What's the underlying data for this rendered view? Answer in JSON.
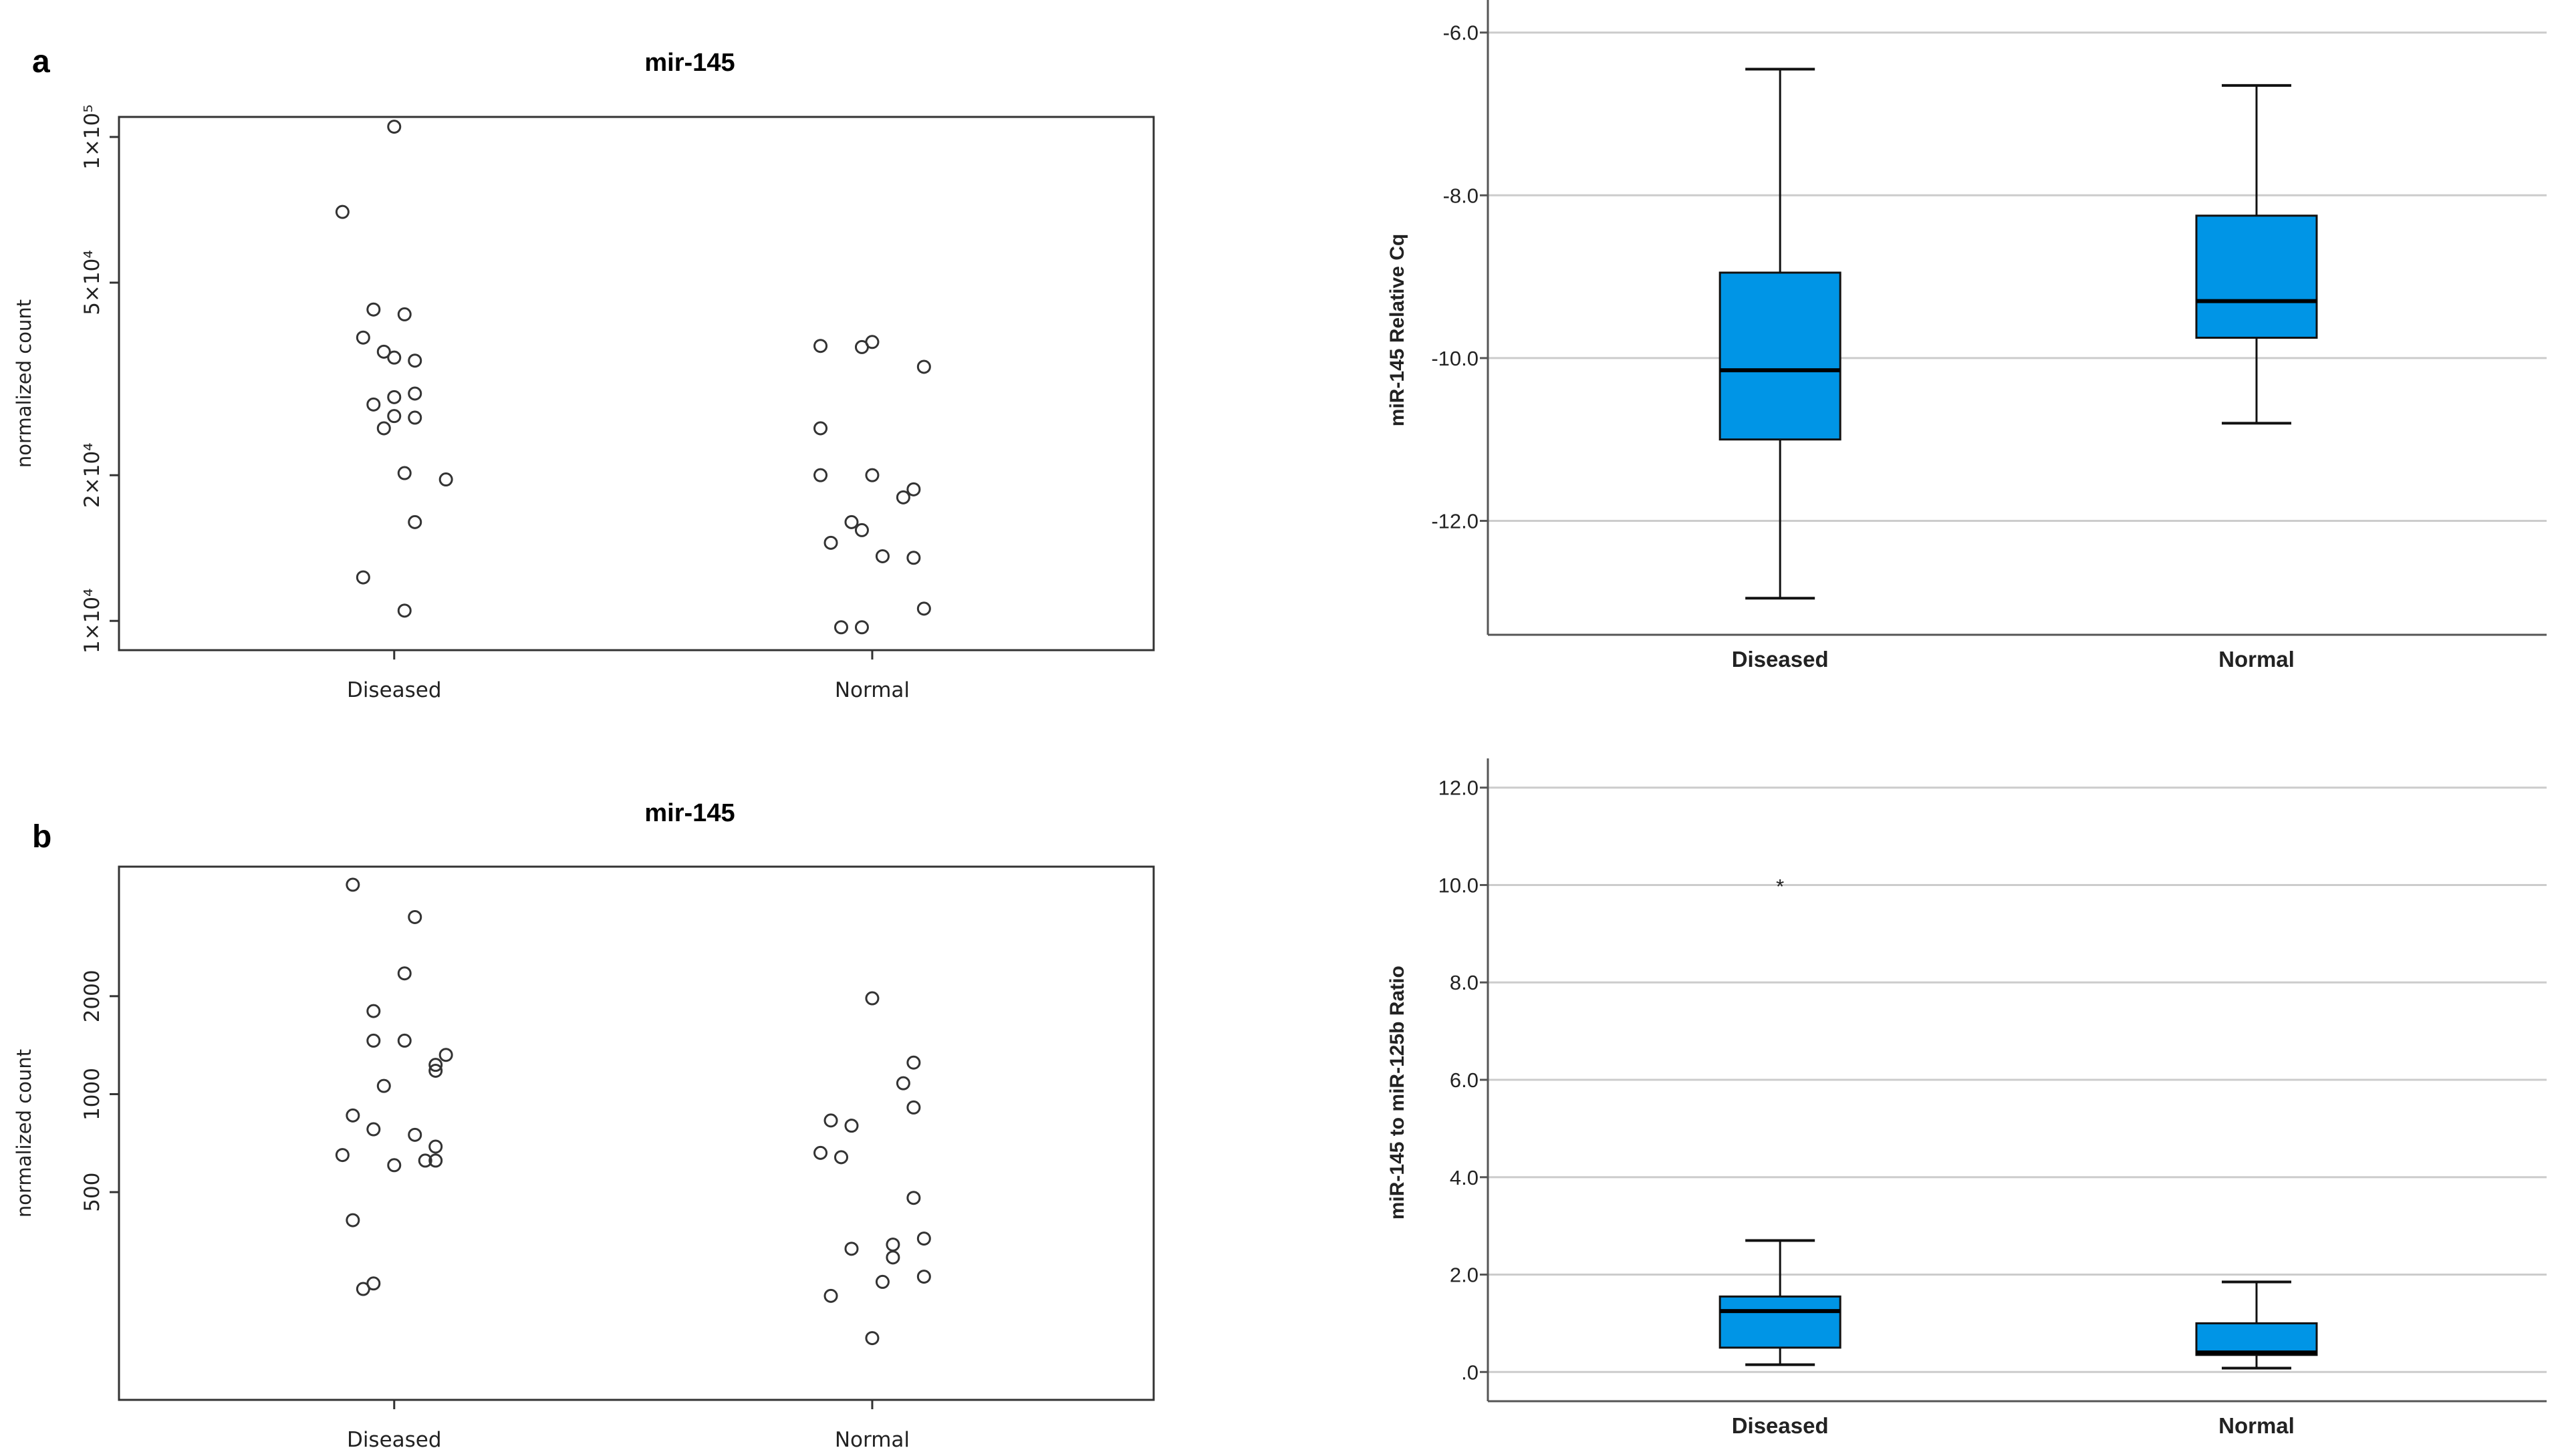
{
  "panels": [
    {
      "id": "a",
      "label": "a"
    },
    {
      "id": "b",
      "label": "b"
    }
  ],
  "chart_data": [
    {
      "id": "a-left",
      "type": "scatter",
      "title": "mir-145",
      "xlabel": "",
      "ylabel": "normalized count",
      "yscale": "log",
      "ylim": [
        8700,
        110000
      ],
      "categories": [
        "Diseased",
        "Normal"
      ],
      "yticks": [
        {
          "value": 10000,
          "label": "1×10⁴"
        },
        {
          "value": 20000,
          "label": "2×10⁴"
        },
        {
          "value": 50000,
          "label": "5×10⁴"
        },
        {
          "value": 100000,
          "label": "1×10⁵"
        }
      ],
      "series": [
        {
          "name": "Diseased",
          "points": [
            {
              "dx": 0.0,
              "y": 105000
            },
            {
              "dx": -0.05,
              "y": 70000
            },
            {
              "dx": -0.02,
              "y": 44000
            },
            {
              "dx": 0.01,
              "y": 43000
            },
            {
              "dx": -0.03,
              "y": 38500
            },
            {
              "dx": -0.01,
              "y": 36000
            },
            {
              "dx": 0.0,
              "y": 35000
            },
            {
              "dx": 0.02,
              "y": 34500
            },
            {
              "dx": 0.02,
              "y": 29500
            },
            {
              "dx": 0.0,
              "y": 29000
            },
            {
              "dx": -0.02,
              "y": 28000
            },
            {
              "dx": 0.0,
              "y": 26500
            },
            {
              "dx": 0.02,
              "y": 26300
            },
            {
              "dx": -0.01,
              "y": 25000
            },
            {
              "dx": 0.01,
              "y": 20200
            },
            {
              "dx": 0.05,
              "y": 19600
            },
            {
              "dx": 0.02,
              "y": 16000
            },
            {
              "dx": -0.03,
              "y": 12300
            },
            {
              "dx": 0.01,
              "y": 10500
            }
          ]
        },
        {
          "name": "Normal",
          "points": [
            {
              "dx": -0.05,
              "y": 37000
            },
            {
              "dx": 0.0,
              "y": 37700
            },
            {
              "dx": -0.01,
              "y": 36800
            },
            {
              "dx": 0.05,
              "y": 33500
            },
            {
              "dx": -0.05,
              "y": 25000
            },
            {
              "dx": -0.05,
              "y": 20000
            },
            {
              "dx": 0.0,
              "y": 20000
            },
            {
              "dx": 0.04,
              "y": 18700
            },
            {
              "dx": 0.03,
              "y": 18000
            },
            {
              "dx": -0.02,
              "y": 16000
            },
            {
              "dx": -0.01,
              "y": 15400
            },
            {
              "dx": -0.04,
              "y": 14500
            },
            {
              "dx": 0.01,
              "y": 13600
            },
            {
              "dx": 0.04,
              "y": 13500
            },
            {
              "dx": 0.05,
              "y": 10600
            },
            {
              "dx": -0.03,
              "y": 9700
            },
            {
              "dx": -0.01,
              "y": 9700
            }
          ]
        }
      ]
    },
    {
      "id": "a-right",
      "type": "box",
      "title": "",
      "xlabel": "",
      "ylabel": "miR-145 Relative Cq",
      "ylim": [
        -13.4,
        -5.6
      ],
      "yticks": [
        {
          "value": -6.0,
          "label": "-6.0"
        },
        {
          "value": -8.0,
          "label": "-8.0"
        },
        {
          "value": -10.0,
          "label": "-10.0"
        },
        {
          "value": -12.0,
          "label": "-12.0"
        }
      ],
      "categories": [
        "Diseased",
        "Normal"
      ],
      "boxes": [
        {
          "name": "Diseased",
          "min": -12.95,
          "q1": -11.0,
          "median": -10.15,
          "q3": -8.95,
          "max": -6.45,
          "outliers": []
        },
        {
          "name": "Normal",
          "min": -10.8,
          "q1": -9.75,
          "median": -9.3,
          "q3": -8.25,
          "max": -6.65,
          "outliers": []
        }
      ],
      "box_color": "#0095e6"
    },
    {
      "id": "b-left",
      "type": "scatter",
      "title": "mir-145",
      "xlabel": "",
      "ylabel": "normalized count",
      "yscale": "log",
      "ylim": [
        115,
        5000
      ],
      "categories": [
        "Diseased",
        "Normal"
      ],
      "yticks": [
        {
          "value": 500,
          "label": "500"
        },
        {
          "value": 1000,
          "label": "1000"
        },
        {
          "value": 2000,
          "label": "2000"
        }
      ],
      "series": [
        {
          "name": "Diseased",
          "points": [
            {
              "dx": -0.04,
              "y": 4400
            },
            {
              "dx": 0.02,
              "y": 3500
            },
            {
              "dx": 0.01,
              "y": 2350
            },
            {
              "dx": -0.02,
              "y": 1800
            },
            {
              "dx": -0.02,
              "y": 1460
            },
            {
              "dx": 0.01,
              "y": 1460
            },
            {
              "dx": 0.05,
              "y": 1320
            },
            {
              "dx": 0.04,
              "y": 1230
            },
            {
              "dx": 0.04,
              "y": 1180
            },
            {
              "dx": -0.01,
              "y": 1060
            },
            {
              "dx": -0.04,
              "y": 860
            },
            {
              "dx": -0.02,
              "y": 780
            },
            {
              "dx": 0.02,
              "y": 750
            },
            {
              "dx": 0.04,
              "y": 690
            },
            {
              "dx": -0.05,
              "y": 650
            },
            {
              "dx": 0.03,
              "y": 625
            },
            {
              "dx": 0.04,
              "y": 625
            },
            {
              "dx": 0.0,
              "y": 605
            },
            {
              "dx": -0.04,
              "y": 410
            },
            {
              "dx": -0.02,
              "y": 262
            },
            {
              "dx": -0.03,
              "y": 252
            }
          ]
        },
        {
          "name": "Normal",
          "points": [
            {
              "dx": 0.0,
              "y": 1970
            },
            {
              "dx": 0.04,
              "y": 1250
            },
            {
              "dx": 0.03,
              "y": 1080
            },
            {
              "dx": 0.04,
              "y": 910
            },
            {
              "dx": -0.04,
              "y": 830
            },
            {
              "dx": -0.02,
              "y": 800
            },
            {
              "dx": -0.05,
              "y": 660
            },
            {
              "dx": -0.03,
              "y": 640
            },
            {
              "dx": 0.04,
              "y": 480
            },
            {
              "dx": 0.05,
              "y": 360
            },
            {
              "dx": 0.02,
              "y": 345
            },
            {
              "dx": -0.02,
              "y": 335
            },
            {
              "dx": 0.02,
              "y": 315
            },
            {
              "dx": 0.05,
              "y": 275
            },
            {
              "dx": 0.01,
              "y": 265
            },
            {
              "dx": -0.04,
              "y": 240
            },
            {
              "dx": 0.0,
              "y": 178
            }
          ]
        }
      ]
    },
    {
      "id": "b-right",
      "type": "box",
      "title": "",
      "xlabel": "",
      "ylabel": "miR-145 to miR-125b Ratio",
      "ylim": [
        -0.6,
        12.6
      ],
      "yticks": [
        {
          "value": 12.0,
          "label": "12.0"
        },
        {
          "value": 10.0,
          "label": "10.0"
        },
        {
          "value": 8.0,
          "label": "8.0"
        },
        {
          "value": 6.0,
          "label": "6.0"
        },
        {
          "value": 4.0,
          "label": "4.0"
        },
        {
          "value": 2.0,
          "label": "2.0"
        },
        {
          "value": 0.0,
          "label": ".0"
        }
      ],
      "categories": [
        "Diseased",
        "Normal"
      ],
      "boxes": [
        {
          "name": "Diseased",
          "min": 0.15,
          "q1": 0.5,
          "median": 1.25,
          "q3": 1.55,
          "max": 2.7,
          "outliers": [
            {
              "y": 10.1,
              "marker": "*"
            }
          ]
        },
        {
          "name": "Normal",
          "min": 0.08,
          "q1": 0.35,
          "median": 0.4,
          "q3": 1.0,
          "max": 1.85,
          "outliers": []
        }
      ],
      "box_color": "#0095e6"
    }
  ]
}
